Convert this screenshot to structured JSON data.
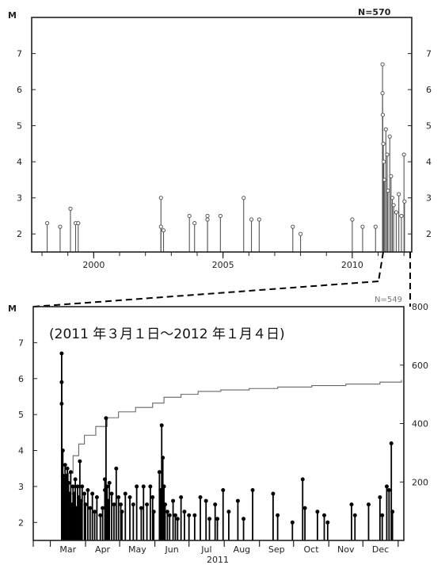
{
  "chart_data": [
    {
      "type": "stem",
      "y_axis_label": "M",
      "count_label": "N=570",
      "x_ticks": [
        "2000",
        "2005",
        "2010"
      ],
      "y_ticks": [
        "2",
        "3",
        "4",
        "5",
        "6",
        "7"
      ],
      "xlim": [
        1997.6,
        2012.3
      ],
      "ylim": [
        1.5,
        8
      ],
      "baseline": 1.5,
      "series": [
        {
          "points": [
            {
              "year": 1998.2,
              "m": 2.3
            },
            {
              "year": 1998.7,
              "m": 2.2
            },
            {
              "year": 1999.1,
              "m": 2.7
            },
            {
              "year": 1999.3,
              "m": 2.3
            },
            {
              "year": 1999.4,
              "m": 2.3
            },
            {
              "year": 2002.6,
              "m": 3.0
            },
            {
              "year": 2002.6,
              "m": 2.2
            },
            {
              "year": 2002.7,
              "m": 2.1
            },
            {
              "year": 2003.7,
              "m": 2.5
            },
            {
              "year": 2003.9,
              "m": 2.3
            },
            {
              "year": 2004.4,
              "m": 2.5
            },
            {
              "year": 2004.4,
              "m": 2.4
            },
            {
              "year": 2004.9,
              "m": 2.5
            },
            {
              "year": 2005.8,
              "m": 3.0
            },
            {
              "year": 2006.1,
              "m": 2.4
            },
            {
              "year": 2006.4,
              "m": 2.4
            },
            {
              "year": 2007.7,
              "m": 2.2
            },
            {
              "year": 2008.0,
              "m": 2.0
            },
            {
              "year": 2010.0,
              "m": 2.4
            },
            {
              "year": 2010.4,
              "m": 2.2
            },
            {
              "year": 2010.9,
              "m": 2.2
            },
            {
              "year": 2011.17,
              "m": 6.7
            },
            {
              "year": 2011.17,
              "m": 5.9
            },
            {
              "year": 2011.18,
              "m": 5.3
            },
            {
              "year": 2011.2,
              "m": 4.5
            },
            {
              "year": 2011.22,
              "m": 4.0
            },
            {
              "year": 2011.25,
              "m": 3.5
            },
            {
              "year": 2011.3,
              "m": 4.9
            },
            {
              "year": 2011.35,
              "m": 4.2
            },
            {
              "year": 2011.38,
              "m": 3.2
            },
            {
              "year": 2011.45,
              "m": 4.7
            },
            {
              "year": 2011.5,
              "m": 3.6
            },
            {
              "year": 2011.55,
              "m": 3.0
            },
            {
              "year": 2011.6,
              "m": 2.8
            },
            {
              "year": 2011.7,
              "m": 2.6
            },
            {
              "year": 2011.8,
              "m": 3.1
            },
            {
              "year": 2011.9,
              "m": 2.5
            },
            {
              "year": 2012.0,
              "m": 4.2
            },
            {
              "year": 2012.02,
              "m": 2.9
            }
          ]
        }
      ]
    },
    {
      "type": "stem",
      "title": "(2011 年３月１日～2012 年１月４日)",
      "y_axis_label": "M",
      "count_label": "N=549",
      "x_ticks": [
        "Mar",
        "Apr",
        "May",
        "Jun",
        "Jul",
        "Aug",
        "Sep",
        "Oct",
        "Nov",
        "Dec"
      ],
      "x_year_label": "2011",
      "y_ticks": [
        "2",
        "3",
        "4",
        "5",
        "6",
        "7"
      ],
      "y2_ticks": [
        "200",
        "400",
        "600",
        "800"
      ],
      "xlim": [
        -15,
        311
      ],
      "ylim": [
        1.5,
        8
      ],
      "y2lim": [
        0,
        800
      ],
      "baseline": 1.5,
      "series": [
        {
          "name": "M",
          "points": [
            {
              "day": 10,
              "m": 6.7
            },
            {
              "day": 10,
              "m": 5.9
            },
            {
              "day": 10,
              "m": 5.3
            },
            {
              "day": 11,
              "m": 4.0
            },
            {
              "day": 11,
              "m": 3.3
            },
            {
              "day": 11,
              "m": 3.0
            },
            {
              "day": 12,
              "m": 3.2
            },
            {
              "day": 12,
              "m": 2.7
            },
            {
              "day": 13,
              "m": 3.6
            },
            {
              "day": 13,
              "m": 2.9
            },
            {
              "day": 14,
              "m": 3.3
            },
            {
              "day": 14,
              "m": 2.6
            },
            {
              "day": 15,
              "m": 3.5
            },
            {
              "day": 16,
              "m": 3.1
            },
            {
              "day": 17,
              "m": 2.8
            },
            {
              "day": 18,
              "m": 3.4
            },
            {
              "day": 19,
              "m": 2.5
            },
            {
              "day": 20,
              "m": 3.0
            },
            {
              "day": 21,
              "m": 2.8
            },
            {
              "day": 22,
              "m": 3.2
            },
            {
              "day": 23,
              "m": 2.4
            },
            {
              "day": 24,
              "m": 3.0
            },
            {
              "day": 25,
              "m": 2.7
            },
            {
              "day": 26,
              "m": 3.7
            },
            {
              "day": 27,
              "m": 2.6
            },
            {
              "day": 28,
              "m": 3.0
            },
            {
              "day": 30,
              "m": 2.8
            },
            {
              "day": 31,
              "m": 2.5
            },
            {
              "day": 33,
              "m": 2.9
            },
            {
              "day": 35,
              "m": 2.4
            },
            {
              "day": 37,
              "m": 2.8
            },
            {
              "day": 39,
              "m": 2.3
            },
            {
              "day": 41,
              "m": 2.7
            },
            {
              "day": 44,
              "m": 2.2
            },
            {
              "day": 46,
              "m": 2.4
            },
            {
              "day": 48,
              "m": 3.2
            },
            {
              "day": 48,
              "m": 2.9
            },
            {
              "day": 49,
              "m": 4.9
            },
            {
              "day": 50,
              "m": 3.0
            },
            {
              "day": 51,
              "m": 2.6
            },
            {
              "day": 52,
              "m": 3.1
            },
            {
              "day": 54,
              "m": 2.8
            },
            {
              "day": 56,
              "m": 2.5
            },
            {
              "day": 58,
              "m": 3.5
            },
            {
              "day": 60,
              "m": 2.7
            },
            {
              "day": 62,
              "m": 2.5
            },
            {
              "day": 63,
              "m": 2.3
            },
            {
              "day": 66,
              "m": 2.8
            },
            {
              "day": 70,
              "m": 2.7
            },
            {
              "day": 73,
              "m": 2.5
            },
            {
              "day": 76,
              "m": 3.0
            },
            {
              "day": 80,
              "m": 2.4
            },
            {
              "day": 82,
              "m": 3.0
            },
            {
              "day": 85,
              "m": 2.5
            },
            {
              "day": 88,
              "m": 3.0
            },
            {
              "day": 90,
              "m": 2.7
            },
            {
              "day": 91,
              "m": 2.3
            },
            {
              "day": 96,
              "m": 3.4
            },
            {
              "day": 97,
              "m": 2.9
            },
            {
              "day": 98,
              "m": 4.7
            },
            {
              "day": 99,
              "m": 3.8
            },
            {
              "day": 100,
              "m": 3.0
            },
            {
              "day": 101,
              "m": 2.5
            },
            {
              "day": 103,
              "m": 2.3
            },
            {
              "day": 105,
              "m": 2.2
            },
            {
              "day": 108,
              "m": 2.6
            },
            {
              "day": 110,
              "m": 2.2
            },
            {
              "day": 112,
              "m": 2.1
            },
            {
              "day": 115,
              "m": 2.7
            },
            {
              "day": 118,
              "m": 2.3
            },
            {
              "day": 122,
              "m": 2.2
            },
            {
              "day": 127,
              "m": 2.2
            },
            {
              "day": 132,
              "m": 2.7
            },
            {
              "day": 137,
              "m": 2.6
            },
            {
              "day": 140,
              "m": 2.1
            },
            {
              "day": 145,
              "m": 2.5
            },
            {
              "day": 147,
              "m": 2.1
            },
            {
              "day": 152,
              "m": 2.9
            },
            {
              "day": 157,
              "m": 2.3
            },
            {
              "day": 165,
              "m": 2.6
            },
            {
              "day": 170,
              "m": 2.1
            },
            {
              "day": 178,
              "m": 2.9
            },
            {
              "day": 196,
              "m": 2.8
            },
            {
              "day": 200,
              "m": 2.2
            },
            {
              "day": 213,
              "m": 2.0
            },
            {
              "day": 222,
              "m": 3.2
            },
            {
              "day": 224,
              "m": 2.4
            },
            {
              "day": 235,
              "m": 2.3
            },
            {
              "day": 241,
              "m": 2.2
            },
            {
              "day": 244,
              "m": 2.0
            },
            {
              "day": 265,
              "m": 2.5
            },
            {
              "day": 268,
              "m": 2.2
            },
            {
              "day": 280,
              "m": 2.5
            },
            {
              "day": 290,
              "m": 2.7
            },
            {
              "day": 292,
              "m": 2.2
            },
            {
              "day": 296,
              "m": 3.0
            },
            {
              "day": 298,
              "m": 2.9
            },
            {
              "day": 300,
              "m": 4.2
            },
            {
              "day": 301,
              "m": 2.3
            }
          ]
        },
        {
          "name": "cumulative",
          "points": [
            {
              "day": 0,
              "n": 0
            },
            {
              "day": 9,
              "n": 0
            },
            {
              "day": 10,
              "n": 60
            },
            {
              "day": 11,
              "n": 110
            },
            {
              "day": 13,
              "n": 170
            },
            {
              "day": 16,
              "n": 230
            },
            {
              "day": 20,
              "n": 290
            },
            {
              "day": 25,
              "n": 330
            },
            {
              "day": 30,
              "n": 360
            },
            {
              "day": 40,
              "n": 390
            },
            {
              "day": 50,
              "n": 420
            },
            {
              "day": 60,
              "n": 440
            },
            {
              "day": 75,
              "n": 455
            },
            {
              "day": 90,
              "n": 470
            },
            {
              "day": 100,
              "n": 490
            },
            {
              "day": 115,
              "n": 500
            },
            {
              "day": 130,
              "n": 510
            },
            {
              "day": 150,
              "n": 515
            },
            {
              "day": 175,
              "n": 520
            },
            {
              "day": 200,
              "n": 525
            },
            {
              "day": 230,
              "n": 530
            },
            {
              "day": 260,
              "n": 535
            },
            {
              "day": 290,
              "n": 542
            },
            {
              "day": 309,
              "n": 549
            }
          ]
        }
      ]
    }
  ]
}
